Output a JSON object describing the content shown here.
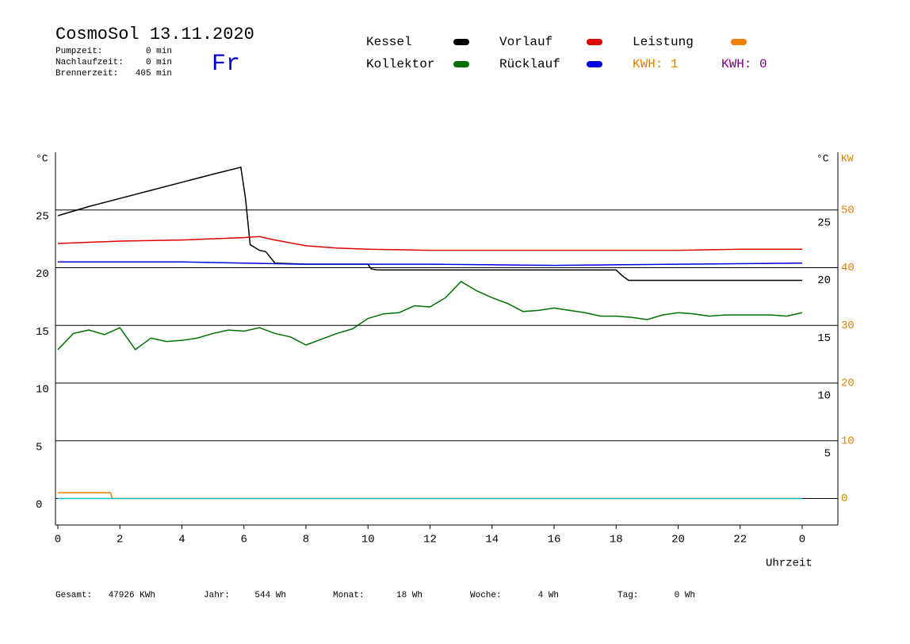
{
  "chart_data": {
    "type": "line",
    "title": "CosmoSol 13.11.2020",
    "weekday": "Fr",
    "status": [
      {
        "label": "Pumpzeit:",
        "value": "0 min"
      },
      {
        "label": "Nachlaufzeit:",
        "value": "0 min"
      },
      {
        "label": "Brennerzeit:",
        "value": "405 min"
      }
    ],
    "kwh_labels": [
      {
        "text": "KWH: 1",
        "color": "#e08000"
      },
      {
        "text": "KWH: 0",
        "color": "#800080"
      }
    ],
    "y_label": "°C",
    "y2_label": "KW",
    "x_label": "Uhrzeit",
    "xlim": [
      0,
      24
    ],
    "xticks": [
      0,
      2,
      4,
      6,
      8,
      10,
      12,
      14,
      16,
      18,
      20,
      22,
      {
        "value": 24,
        "label": "0"
      }
    ],
    "ylim": [
      -2.3,
      30
    ],
    "yticks": [
      0,
      5,
      10,
      15,
      20,
      25
    ],
    "y_right_ticks": [
      5,
      10,
      15,
      20,
      25
    ],
    "y2lim": [
      -4.6,
      60
    ],
    "y2ticks": [
      0,
      10,
      20,
      30,
      40,
      50
    ],
    "grid": true,
    "series": [
      {
        "name": "Kessel",
        "color": "#000000",
        "x": [
          0,
          1,
          2,
          3,
          4,
          5,
          5.9,
          6.05,
          6.2,
          6.5,
          6.7,
          7,
          8,
          10,
          10.1,
          10.3,
          18,
          18.2,
          18.4,
          24
        ],
        "values": [
          24.5,
          25.3,
          26.0,
          26.7,
          27.4,
          28.1,
          28.7,
          26,
          22,
          21.5,
          21.4,
          20.4,
          20.3,
          20.3,
          19.9,
          19.8,
          19.8,
          19.3,
          18.9,
          18.9
        ]
      },
      {
        "name": "Vorlauf",
        "color": "#e00000",
        "x": [
          0,
          2,
          4,
          6,
          6.5,
          7,
          8,
          9,
          10,
          12,
          14,
          16,
          18,
          20,
          22,
          24
        ],
        "values": [
          22.1,
          22.3,
          22.4,
          22.6,
          22.7,
          22.4,
          21.9,
          21.7,
          21.6,
          21.5,
          21.5,
          21.5,
          21.5,
          21.5,
          21.6,
          21.6
        ]
      },
      {
        "name": "Leistung",
        "color": "#f08000",
        "axis": "y2",
        "x": [
          0,
          1.7,
          1.75,
          24
        ],
        "values": [
          1,
          1,
          0,
          0
        ]
      },
      {
        "name": "Kollektor",
        "color": "#007000",
        "x": [
          0,
          0.5,
          1,
          1.5,
          2,
          2.5,
          3,
          3.5,
          4,
          4.5,
          5,
          5.5,
          6,
          6.5,
          7,
          7.5,
          8,
          8.5,
          9,
          9.5,
          10,
          10.5,
          11,
          11.5,
          12,
          12.5,
          13,
          13.5,
          14,
          14.5,
          15,
          15.5,
          16,
          16.5,
          17,
          17.5,
          18,
          18.5,
          19,
          19.5,
          20,
          20.5,
          21,
          21.5,
          22,
          22.5,
          23,
          23.5,
          24
        ],
        "values": [
          12.9,
          14.3,
          14.6,
          14.2,
          14.8,
          12.9,
          13.9,
          13.6,
          13.7,
          13.9,
          14.3,
          14.6,
          14.5,
          14.8,
          14.3,
          14.0,
          13.3,
          13.8,
          14.3,
          14.7,
          15.6,
          16.0,
          16.1,
          16.7,
          16.6,
          17.4,
          18.8,
          18.0,
          17.4,
          16.9,
          16.2,
          16.3,
          16.5,
          16.3,
          16.1,
          15.8,
          15.8,
          15.7,
          15.5,
          15.9,
          16.1,
          16.0,
          15.8,
          15.9,
          15.9,
          15.9,
          15.9,
          15.8,
          16.1
        ]
      },
      {
        "name": "Rücklauf",
        "color": "#0000e0",
        "x": [
          0,
          4,
          8,
          12,
          16,
          20,
          24
        ],
        "values": [
          20.5,
          20.5,
          20.3,
          20.3,
          20.2,
          20.3,
          20.4
        ]
      },
      {
        "color": "#00c8c8",
        "x": [
          0,
          24
        ],
        "values": [
          0,
          0
        ]
      }
    ],
    "footer": [
      {
        "label": "Gesamt:",
        "value": "47926 KWh"
      },
      {
        "label": "Jahr:",
        "value": "544 Wh"
      },
      {
        "label": "Monat:",
        "value": "18 Wh"
      },
      {
        "label": "Woche:",
        "value": "4 Wh"
      },
      {
        "label": "Tag:",
        "value": "0 Wh"
      }
    ]
  }
}
